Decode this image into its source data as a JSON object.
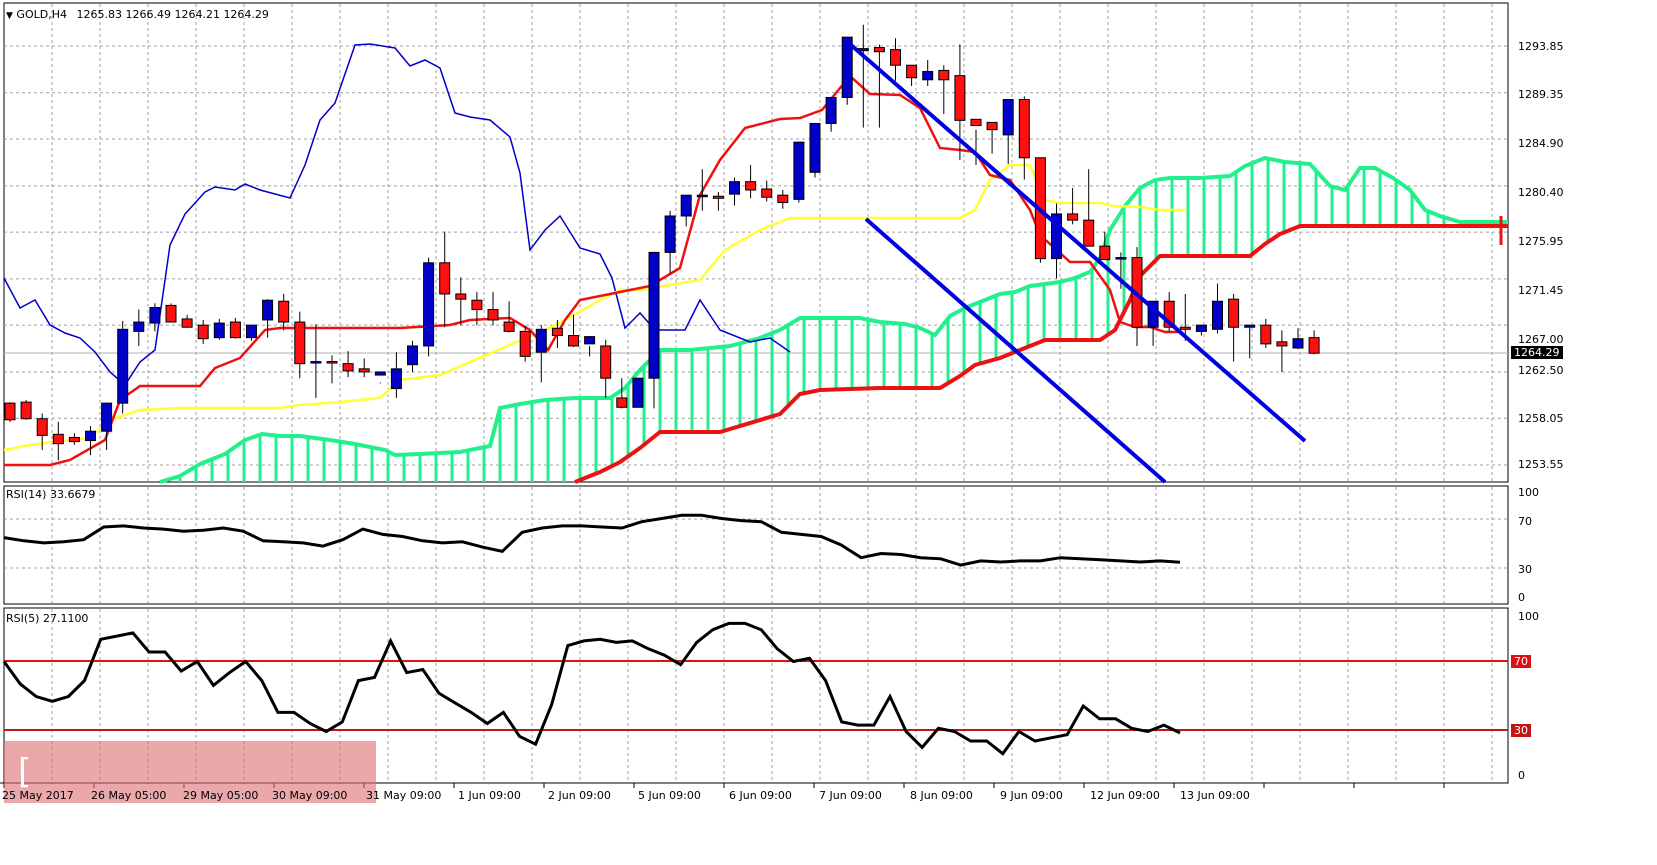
{
  "header": {
    "symbol_label": "GOLD,H4",
    "ohlc": "1265.83 1266.49 1264.21 1264.29",
    "menu_icon": "triangle-down-icon"
  },
  "price_axis": {
    "ticks": [
      "1293.85",
      "1289.35",
      "1284.90",
      "1280.40",
      "1275.95",
      "1271.45",
      "1267.00",
      "1262.50",
      "1258.05",
      "1253.55"
    ],
    "current_price": "1264.29"
  },
  "rsi14": {
    "label": "RSI(14) 33.6679",
    "ticks": [
      "100",
      "70",
      "30",
      "0"
    ]
  },
  "rsi5": {
    "label": "RSI(5) 27.1100",
    "ticks": [
      "100",
      "0"
    ],
    "level_high": "70",
    "level_low": "30"
  },
  "time_axis": {
    "labels": [
      "25 May 2017",
      "26 May 05:00",
      "29 May 05:00",
      "30 May 09:00",
      "31 May 09:00",
      "1 Jun 09:00",
      "2 Jun 09:00",
      "5 Jun 09:00",
      "6 Jun 09:00",
      "7 Jun 09:00",
      "8 Jun 09:00",
      "9 Jun 09:00",
      "12 Jun 09:00",
      "13 Jun 09:00"
    ]
  },
  "watermark": {
    "text": "[ www.instaforex.com ]"
  },
  "colors": {
    "bull_candle": "#0000c8",
    "bear_candle": "#ff0000",
    "tenkan": "#ff0000",
    "kijun": "#ffff33",
    "chikou": "#0000c8",
    "cloud": "#22f08c",
    "senkou_b": "#ff0000",
    "channel": "#0000e0",
    "rsi_line": "#000000",
    "level_line": "#e01010"
  },
  "chart_data": [
    {
      "type": "candlestick",
      "title": "GOLD,H4",
      "ylabel": "Price",
      "ylim": [
        1252.0,
        1297.0
      ],
      "x": [
        "25 May 2017",
        "26 May 05:00",
        "29 May 05:00",
        "30 May 09:00",
        "31 May 09:00",
        "1 Jun 09:00",
        "2 Jun 09:00",
        "5 Jun 09:00",
        "6 Jun 09:00",
        "7 Jun 09:00",
        "8 Jun 09:00",
        "9 Jun 09:00",
        "12 Jun 09:00",
        "13 Jun 09:00"
      ],
      "last_ohlc": {
        "open": 1265.83,
        "high": 1266.49,
        "low": 1264.21,
        "close": 1264.29
      },
      "indicators": [
        "Ichimoku (Tenkan red, Kijun yellow, Chikou blue, Kumo green/red)",
        "Descending channel (blue)"
      ],
      "approx_range": {
        "high": 1296.0,
        "low": 1253.8
      },
      "channel": {
        "upper": [
          [
            1293.8,
            "7 Jun 05:00"
          ],
          [
            1258.5,
            "14 Jun"
          ]
        ],
        "lower": [
          [
            1276.5,
            "7 Jun 13:00"
          ],
          [
            1253.0,
            "13 Jun"
          ]
        ]
      }
    },
    {
      "type": "line",
      "title": "RSI(14)",
      "last_value": 33.6679,
      "ylim": [
        0,
        100
      ],
      "levels": [
        30,
        70
      ],
      "approx_values": [
        57,
        54,
        52,
        53,
        55,
        67,
        68,
        66,
        65,
        63,
        64,
        66,
        63,
        54,
        53,
        52,
        49,
        55,
        65,
        60,
        58,
        54,
        52,
        53,
        48,
        44,
        62,
        66,
        68,
        68,
        67,
        66,
        72,
        75,
        78,
        78,
        75,
        73,
        72,
        62,
        60,
        58,
        50,
        38,
        42,
        41,
        38,
        37,
        31,
        35,
        34,
        35,
        35,
        38,
        37,
        36,
        35,
        34,
        35,
        33.7
      ]
    },
    {
      "type": "line",
      "title": "RSI(5)",
      "last_value": 27.11,
      "ylim": [
        0,
        100
      ],
      "levels": [
        30,
        70
      ],
      "approx_values": [
        72,
        58,
        50,
        47,
        50,
        60,
        86,
        88,
        90,
        78,
        78,
        66,
        72,
        57,
        65,
        72,
        60,
        40,
        40,
        33,
        28,
        34,
        60,
        62,
        85,
        65,
        67,
        52,
        46,
        40,
        33,
        40,
        25,
        20,
        45,
        82,
        85,
        86,
        84,
        85,
        80,
        76,
        70,
        84,
        92,
        96,
        96,
        92,
        80,
        72,
        74,
        60,
        34,
        32,
        32,
        50,
        28,
        18,
        30,
        28,
        22,
        22,
        14,
        28,
        22,
        24,
        26,
        44,
        36,
        36,
        30,
        28,
        32,
        27.1
      ]
    }
  ]
}
